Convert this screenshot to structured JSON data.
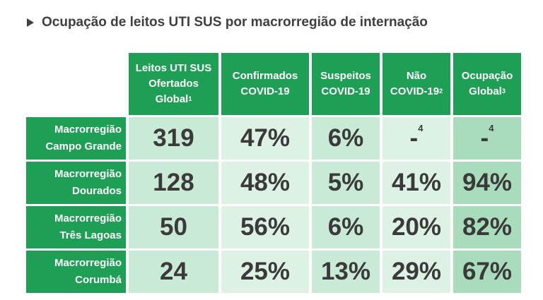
{
  "title": "Ocupação de leitos UTI SUS por macrorregião de internação",
  "headers": [
    {
      "lines": [
        "Leitos UTI SUS",
        "Ofertados",
        "Global"
      ],
      "sup": "1"
    },
    {
      "lines": [
        "Confirmados",
        "COVID-19"
      ],
      "sup": ""
    },
    {
      "lines": [
        "Suspeitos",
        "COVID-19"
      ],
      "sup": ""
    },
    {
      "lines": [
        "Não",
        "COVID-19"
      ],
      "sup": "2"
    },
    {
      "lines": [
        "Ocupação",
        "Global"
      ],
      "sup": "3"
    }
  ],
  "rows": [
    {
      "label": [
        "Macrorregião",
        "Campo Grande"
      ],
      "cells": [
        {
          "v": "319",
          "sup": ""
        },
        {
          "v": "47%",
          "sup": ""
        },
        {
          "v": "6%",
          "sup": ""
        },
        {
          "v": "-",
          "sup": "4"
        },
        {
          "v": "-",
          "sup": "4"
        }
      ]
    },
    {
      "label": [
        "Macrorregião",
        "Dourados"
      ],
      "cells": [
        {
          "v": "128",
          "sup": ""
        },
        {
          "v": "48%",
          "sup": ""
        },
        {
          "v": "5%",
          "sup": ""
        },
        {
          "v": "41%",
          "sup": ""
        },
        {
          "v": "94%",
          "sup": ""
        }
      ]
    },
    {
      "label": [
        "Macrorregião",
        "Três Lagoas"
      ],
      "cells": [
        {
          "v": "50",
          "sup": ""
        },
        {
          "v": "56%",
          "sup": ""
        },
        {
          "v": "6%",
          "sup": ""
        },
        {
          "v": "20%",
          "sup": ""
        },
        {
          "v": "82%",
          "sup": ""
        }
      ]
    },
    {
      "label": [
        "Macrorregião",
        "Corumbá"
      ],
      "cells": [
        {
          "v": "24",
          "sup": ""
        },
        {
          "v": "25%",
          "sup": ""
        },
        {
          "v": "13%",
          "sup": ""
        },
        {
          "v": "29%",
          "sup": ""
        },
        {
          "v": "67%",
          "sup": ""
        }
      ]
    }
  ]
}
